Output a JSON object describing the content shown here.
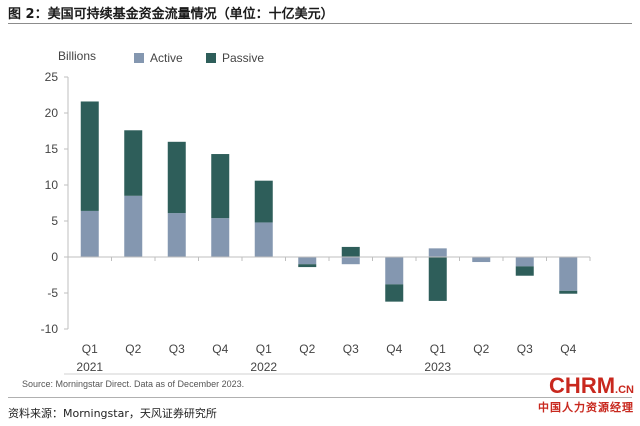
{
  "figure_title": "图 2：美国可持续基金资金流量情况（单位：十亿美元）",
  "source_note": "Source: Morningstar Direct. Data as of December 2023.",
  "footer_source": "资料来源：Morningstar，天风证券研究所",
  "watermark": {
    "main": "CHRM",
    "suffix": ".CN",
    "sub": "中国人力资源经理"
  },
  "colors": {
    "active": "#8497b0",
    "passive": "#2e5e5a",
    "axis": "#bfbfbf"
  },
  "chart_data": {
    "type": "bar",
    "stacked": true,
    "ylabel": "Billions",
    "ylim": [
      -10,
      25
    ],
    "yticks": [
      25,
      20,
      15,
      10,
      5,
      0,
      -5,
      -10
    ],
    "categories": [
      "Q1",
      "Q2",
      "Q3",
      "Q4",
      "Q1",
      "Q2",
      "Q3",
      "Q4",
      "Q1",
      "Q2",
      "Q3",
      "Q4"
    ],
    "year_labels": [
      {
        "label": "2021",
        "index": 0
      },
      {
        "label": "2022",
        "index": 4
      },
      {
        "label": "2023",
        "index": 8
      }
    ],
    "legend": {
      "position": "top"
    },
    "series": [
      {
        "name": "Active",
        "color": "#8497b0",
        "values": [
          6.4,
          8.5,
          6.1,
          5.4,
          4.8,
          -1.0,
          -1.0,
          -3.8,
          1.2,
          -0.7,
          -1.3,
          -4.7
        ]
      },
      {
        "name": "Passive",
        "color": "#2e5e5a",
        "values": [
          15.2,
          9.1,
          9.9,
          8.9,
          5.8,
          -0.4,
          1.4,
          -2.4,
          -6.1,
          0.0,
          -1.3,
          -0.4
        ]
      }
    ]
  }
}
